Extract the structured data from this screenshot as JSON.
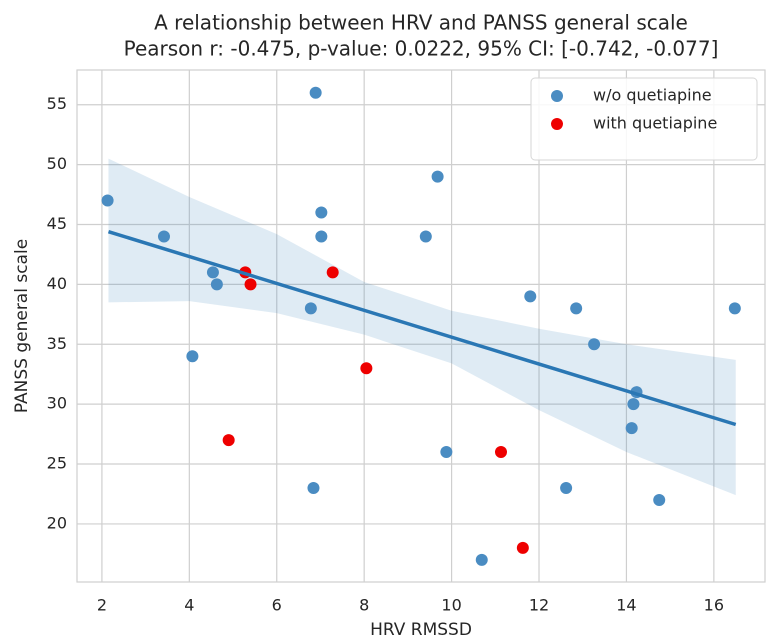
{
  "chart_data": {
    "type": "scatter",
    "title": "A relationship between HRV and PANSS general scale",
    "subtitle": "Pearson r: -0.475, p-value: 0.0222, 95% CI: [-0.742, -0.077]",
    "x_label": "HRV  RMSSD",
    "y_label": "PANSS general scale",
    "series": [
      {
        "name": "w/o quetiapine",
        "color": "#4a8cc2",
        "x": [
          2.13,
          3.42,
          4.07,
          4.54,
          4.63,
          6.78,
          6.84,
          6.89,
          7.02,
          7.02,
          9.41,
          9.68,
          9.88,
          10.69,
          11.8,
          12.62,
          12.85,
          13.26,
          14.12,
          14.16,
          14.23,
          14.75,
          16.48
        ],
        "values": [
          47,
          44,
          34,
          41,
          40,
          38,
          23,
          56,
          46,
          44,
          44,
          49,
          26,
          17,
          39,
          23,
          38,
          35,
          28,
          30,
          31,
          22,
          38
        ]
      },
      {
        "name": "with quetiapine",
        "color": "#ee0000",
        "x": [
          4.9,
          5.28,
          5.4,
          7.28,
          8.05,
          11.13,
          11.63
        ],
        "values": [
          27,
          41,
          40,
          41,
          33,
          26,
          18
        ]
      }
    ],
    "regression": {
      "color": "#2a77b4",
      "x": [
        2.15,
        16.5
      ],
      "values": [
        44.4,
        28.3
      ]
    },
    "ci": {
      "color": "#2a77b4",
      "x": [
        2.15,
        4,
        6,
        8,
        10,
        12,
        14,
        16.5
      ],
      "upper": [
        50.5,
        47.3,
        44.2,
        40.2,
        37.8,
        36.3,
        35,
        33.7
      ],
      "lower": [
        38.5,
        38.6,
        37.6,
        35.8,
        33.4,
        29.5,
        26,
        22.4
      ]
    },
    "xlim": [
      1.43,
      17.17
    ],
    "xticks": [
      2,
      4,
      6,
      8,
      10,
      12,
      14,
      16
    ],
    "ylim": [
      15.15,
      57.9
    ],
    "yticks": [
      20,
      25,
      30,
      35,
      40,
      45,
      50,
      55
    ],
    "grid": true,
    "legend": "upper right"
  }
}
